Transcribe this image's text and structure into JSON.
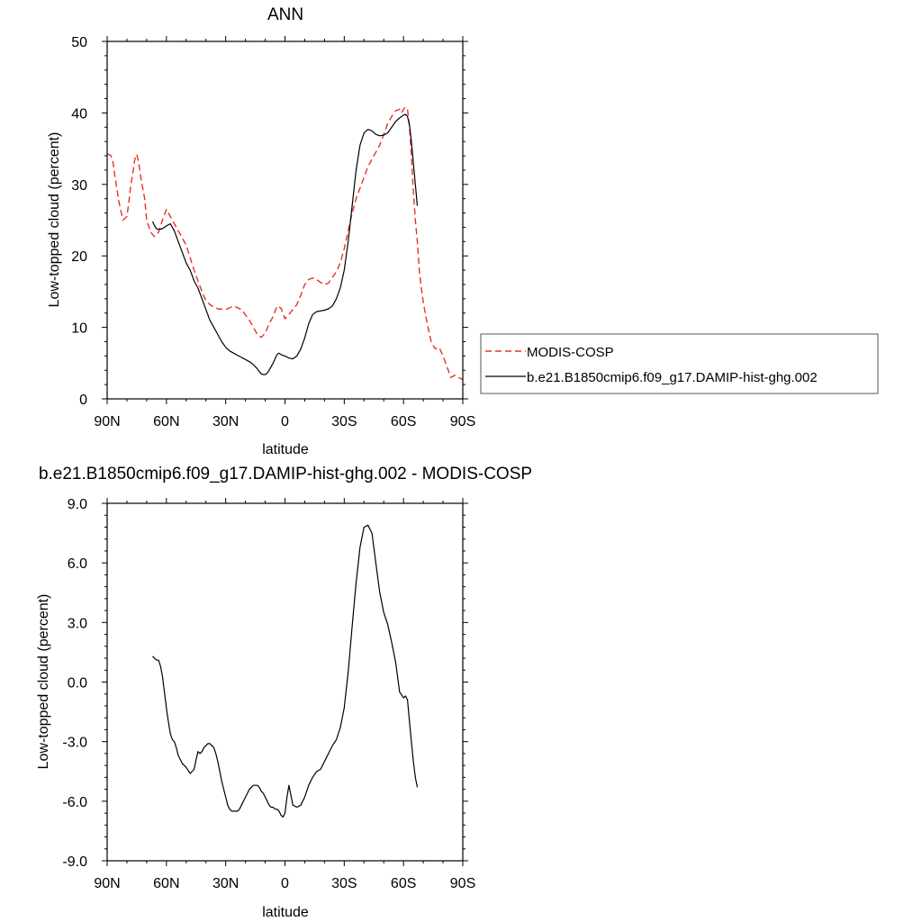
{
  "chart_data": [
    {
      "type": "line",
      "title": "ANN",
      "xlabel": "latitude",
      "ylabel": "Low-topped cloud (percent)",
      "xlim": [
        90,
        -90
      ],
      "ylim": [
        0,
        50
      ],
      "x_ticks": [
        90,
        60,
        30,
        0,
        -30,
        -60,
        -90
      ],
      "x_tick_labels": [
        "90N",
        "60N",
        "30N",
        "0",
        "30S",
        "60S",
        "90S"
      ],
      "y_ticks": [
        0,
        10,
        20,
        30,
        40,
        50
      ],
      "y_tick_labels": [
        "0",
        "10",
        "20",
        "30",
        "40",
        "50"
      ],
      "grid": false,
      "legend_position": "right",
      "series": [
        {
          "name": "MODIS-COSP",
          "color": "#e8302a",
          "style": "dashed",
          "x": [
            90,
            88,
            87,
            86,
            84,
            82,
            80,
            79,
            78,
            77,
            76,
            75,
            74,
            73,
            71,
            70,
            68,
            66,
            64,
            62,
            60,
            58,
            56,
            54,
            50,
            46,
            44,
            42,
            40,
            38,
            36,
            34,
            30,
            26,
            22,
            18,
            16,
            14,
            12,
            10,
            8,
            6,
            4,
            2,
            0,
            -2,
            -4,
            -6,
            -8,
            -10,
            -12,
            -14,
            -16,
            -18,
            -20,
            -22,
            -24,
            -26,
            -28,
            -30,
            -32,
            -34,
            -36,
            -38,
            -40,
            -42,
            -44,
            -46,
            -48,
            -50,
            -52,
            -54,
            -56,
            -58,
            -59,
            -60,
            -61,
            -62,
            -63,
            -64,
            -65,
            -66,
            -67,
            -68,
            -69,
            -70,
            -72,
            -74,
            -76,
            -78,
            -80,
            -82,
            -84,
            -86,
            -88,
            -90
          ],
          "y": [
            34.3,
            34.0,
            33.0,
            31.0,
            27.5,
            25.0,
            25.5,
            27.5,
            30.0,
            31.5,
            33.5,
            34.2,
            33.0,
            31.0,
            28.0,
            25.0,
            23.3,
            22.7,
            23.3,
            25.0,
            26.5,
            25.5,
            24.5,
            23.5,
            21.5,
            18.0,
            16.5,
            15.0,
            13.7,
            13.2,
            12.8,
            12.6,
            12.5,
            13.0,
            12.5,
            11.0,
            10.0,
            9.0,
            8.6,
            9.2,
            10.5,
            11.5,
            13.0,
            12.7,
            11.2,
            11.8,
            12.5,
            13.2,
            14.5,
            16.0,
            16.7,
            16.9,
            16.7,
            16.3,
            16.0,
            16.2,
            17.0,
            17.8,
            19.0,
            21.0,
            23.5,
            26.0,
            28.0,
            29.5,
            31.0,
            32.5,
            33.5,
            34.5,
            35.5,
            37.0,
            38.5,
            39.5,
            40.3,
            40.5,
            40.0,
            40.5,
            40.8,
            40.5,
            38.0,
            34.0,
            29.0,
            25.0,
            22.0,
            18.0,
            15.5,
            13.5,
            10.5,
            8.0,
            7.0,
            7.2,
            6.0,
            4.5,
            3.0,
            3.3,
            3.0,
            2.7
          ]
        },
        {
          "name": "b.e21.B1850cmip6.f09_g17.DAMIP-hist-ghg.002",
          "color": "#000000",
          "style": "solid",
          "x": [
            67,
            66,
            65,
            64,
            62,
            60,
            58,
            56,
            54,
            52,
            50,
            48,
            46,
            44,
            42,
            40,
            38,
            36,
            34,
            32,
            30,
            28,
            26,
            24,
            22,
            20,
            18,
            16,
            14,
            13,
            12,
            11,
            10,
            9,
            8,
            6,
            4,
            3,
            2,
            0,
            -2,
            -4,
            -6,
            -8,
            -10,
            -12,
            -14,
            -16,
            -18,
            -20,
            -22,
            -24,
            -26,
            -28,
            -30,
            -32,
            -34,
            -36,
            -38,
            -40,
            -42,
            -44,
            -46,
            -48,
            -50,
            -52,
            -54,
            -56,
            -58,
            -60,
            -61,
            -62,
            -63,
            -64,
            -65,
            -66,
            -67
          ],
          "y": [
            24.8,
            24.2,
            23.8,
            23.7,
            23.8,
            24.2,
            24.5,
            23.5,
            22.0,
            20.5,
            19.0,
            18.0,
            16.5,
            15.5,
            14.0,
            12.5,
            11.0,
            10.0,
            9.0,
            8.0,
            7.2,
            6.7,
            6.4,
            6.1,
            5.8,
            5.5,
            5.2,
            4.8,
            4.2,
            3.8,
            3.5,
            3.4,
            3.4,
            3.6,
            4.0,
            5.0,
            6.2,
            6.4,
            6.2,
            6.0,
            5.7,
            5.6,
            6.0,
            7.0,
            8.5,
            10.5,
            11.8,
            12.2,
            12.3,
            12.4,
            12.6,
            13.0,
            14.0,
            15.5,
            18.0,
            22.0,
            27.0,
            32.0,
            35.5,
            37.2,
            37.7,
            37.5,
            37.0,
            36.8,
            36.9,
            37.2,
            38.0,
            38.8,
            39.3,
            39.7,
            39.8,
            39.5,
            38.3,
            36.0,
            33.0,
            30.0,
            27.0
          ]
        }
      ]
    },
    {
      "type": "line",
      "title": "b.e21.B1850cmip6.f09_g17.DAMIP-hist-ghg.002 - MODIS-COSP",
      "xlabel": "latitude",
      "ylabel": "Low-topped cloud (percent)",
      "xlim": [
        90,
        -90
      ],
      "ylim": [
        -9,
        9
      ],
      "x_ticks": [
        90,
        60,
        30,
        0,
        -30,
        -60,
        -90
      ],
      "x_tick_labels": [
        "90N",
        "60N",
        "30N",
        "0",
        "30S",
        "60S",
        "90S"
      ],
      "y_ticks": [
        -9,
        -6,
        -3,
        0,
        3,
        6,
        9
      ],
      "y_tick_labels": [
        "-9.0",
        "-6.0",
        "-3.0",
        "0.0",
        "3.0",
        "6.0",
        "9.0"
      ],
      "grid": false,
      "series": [
        {
          "color": "#000000",
          "style": "solid",
          "x": [
            67,
            66,
            65,
            64,
            63,
            62,
            61,
            60,
            59,
            58,
            57,
            56,
            55,
            54,
            52,
            50,
            48,
            46,
            45,
            44,
            43,
            42,
            41,
            40,
            39,
            38,
            37,
            36,
            35,
            34,
            33,
            32,
            31,
            30,
            29,
            28,
            27,
            26,
            25,
            24,
            23,
            22,
            21,
            20,
            19,
            18,
            17,
            16,
            15,
            14,
            13,
            12,
            11,
            10,
            9,
            8,
            7,
            6,
            5,
            4,
            3,
            2,
            1,
            0,
            -1,
            -2,
            -4,
            -6,
            -8,
            -10,
            -12,
            -14,
            -16,
            -18,
            -20,
            -22,
            -24,
            -26,
            -28,
            -30,
            -32,
            -34,
            -36,
            -38,
            -40,
            -42,
            -44,
            -46,
            -48,
            -50,
            -52,
            -54,
            -56,
            -58,
            -60,
            -61,
            -62,
            -63,
            -64,
            -65,
            -66,
            -67
          ],
          "y": [
            1.3,
            1.2,
            1.1,
            1.1,
            0.8,
            0.3,
            -0.5,
            -1.3,
            -2.0,
            -2.6,
            -2.9,
            -3.0,
            -3.3,
            -3.7,
            -4.1,
            -4.3,
            -4.6,
            -4.4,
            -3.9,
            -3.5,
            -3.6,
            -3.5,
            -3.3,
            -3.2,
            -3.1,
            -3.1,
            -3.2,
            -3.3,
            -3.6,
            -4.0,
            -4.5,
            -5.0,
            -5.4,
            -5.8,
            -6.2,
            -6.4,
            -6.5,
            -6.5,
            -6.5,
            -6.5,
            -6.4,
            -6.2,
            -6.0,
            -5.8,
            -5.6,
            -5.4,
            -5.3,
            -5.2,
            -5.2,
            -5.2,
            -5.3,
            -5.5,
            -5.6,
            -5.8,
            -6.0,
            -6.2,
            -6.3,
            -6.3,
            -6.4,
            -6.4,
            -6.5,
            -6.7,
            -6.8,
            -6.6,
            -5.8,
            -5.2,
            -6.2,
            -6.3,
            -6.2,
            -5.8,
            -5.2,
            -4.8,
            -4.5,
            -4.4,
            -4.0,
            -3.6,
            -3.2,
            -2.9,
            -2.3,
            -1.3,
            0.5,
            2.8,
            5.0,
            6.8,
            7.8,
            7.9,
            7.5,
            6.0,
            4.5,
            3.5,
            2.9,
            2.0,
            1.0,
            -0.5,
            -0.8,
            -0.7,
            -0.9,
            -2.0,
            -3.0,
            -4.0,
            -4.8,
            -5.3
          ]
        }
      ]
    }
  ]
}
